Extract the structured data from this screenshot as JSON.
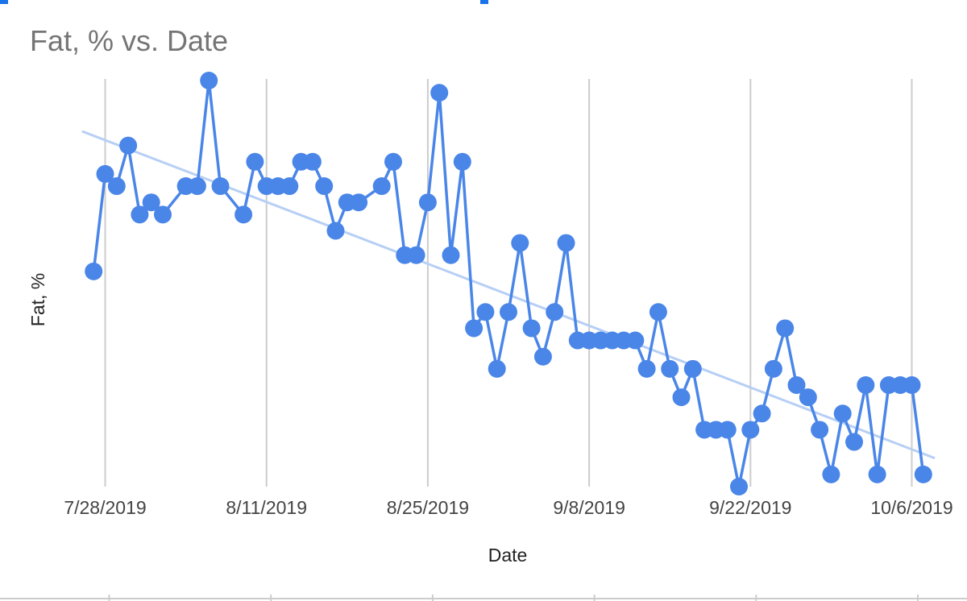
{
  "chart_data": {
    "type": "line",
    "title": "Fat, % vs. Date",
    "xlabel": "Date",
    "ylabel": "Fat, %",
    "x_ticks": [
      "7/28/2019",
      "8/11/2019",
      "8/25/2019",
      "9/8/2019",
      "9/22/2019",
      "10/6/2019"
    ],
    "ylim": [
      0,
      100
    ],
    "grid": "vertical",
    "trendline": {
      "start": [
        "2019-07-26",
        87.5
      ],
      "end": [
        "2019-10-08",
        7.0
      ]
    },
    "series": [
      {
        "color": "#4a86e8",
        "trend_color": "#b7cff5",
        "x": [
          "2019-07-27",
          "2019-07-28",
          "2019-07-29",
          "2019-07-30",
          "2019-07-31",
          "2019-08-01",
          "2019-08-02",
          "2019-08-04",
          "2019-08-05",
          "2019-08-06",
          "2019-08-07",
          "2019-08-09",
          "2019-08-10",
          "2019-08-11",
          "2019-08-12",
          "2019-08-13",
          "2019-08-14",
          "2019-08-15",
          "2019-08-16",
          "2019-08-17",
          "2019-08-18",
          "2019-08-19",
          "2019-08-21",
          "2019-08-22",
          "2019-08-23",
          "2019-08-24",
          "2019-08-25",
          "2019-08-26",
          "2019-08-27",
          "2019-08-28",
          "2019-08-29",
          "2019-08-30",
          "2019-08-31",
          "2019-09-01",
          "2019-09-02",
          "2019-09-03",
          "2019-09-04",
          "2019-09-05",
          "2019-09-06",
          "2019-09-07",
          "2019-09-08",
          "2019-09-09",
          "2019-09-10",
          "2019-09-11",
          "2019-09-12",
          "2019-09-13",
          "2019-09-14",
          "2019-09-15",
          "2019-09-16",
          "2019-09-17",
          "2019-09-18",
          "2019-09-19",
          "2019-09-20",
          "2019-09-21",
          "2019-09-22",
          "2019-09-23",
          "2019-09-24",
          "2019-09-25",
          "2019-09-26",
          "2019-09-27",
          "2019-09-28",
          "2019-09-29",
          "2019-09-30",
          "2019-10-01",
          "2019-10-02",
          "2019-10-03",
          "2019-10-04",
          "2019-10-05",
          "2019-10-06",
          "2019-10-07"
        ],
        "y": [
          53,
          77,
          74,
          84,
          67,
          70,
          67,
          74,
          74,
          100,
          74,
          67,
          80,
          74,
          74,
          74,
          80,
          80,
          74,
          63,
          70,
          70,
          74,
          80,
          57,
          57,
          70,
          97,
          57,
          80,
          39,
          43,
          29,
          43,
          60,
          39,
          32,
          43,
          60,
          36,
          36,
          36,
          36,
          36,
          36,
          29,
          43,
          29,
          22,
          29,
          14,
          14,
          14,
          0,
          14,
          18,
          29,
          39,
          25,
          22,
          14,
          3,
          18,
          11,
          25,
          3,
          25,
          25,
          25,
          3
        ]
      }
    ]
  }
}
